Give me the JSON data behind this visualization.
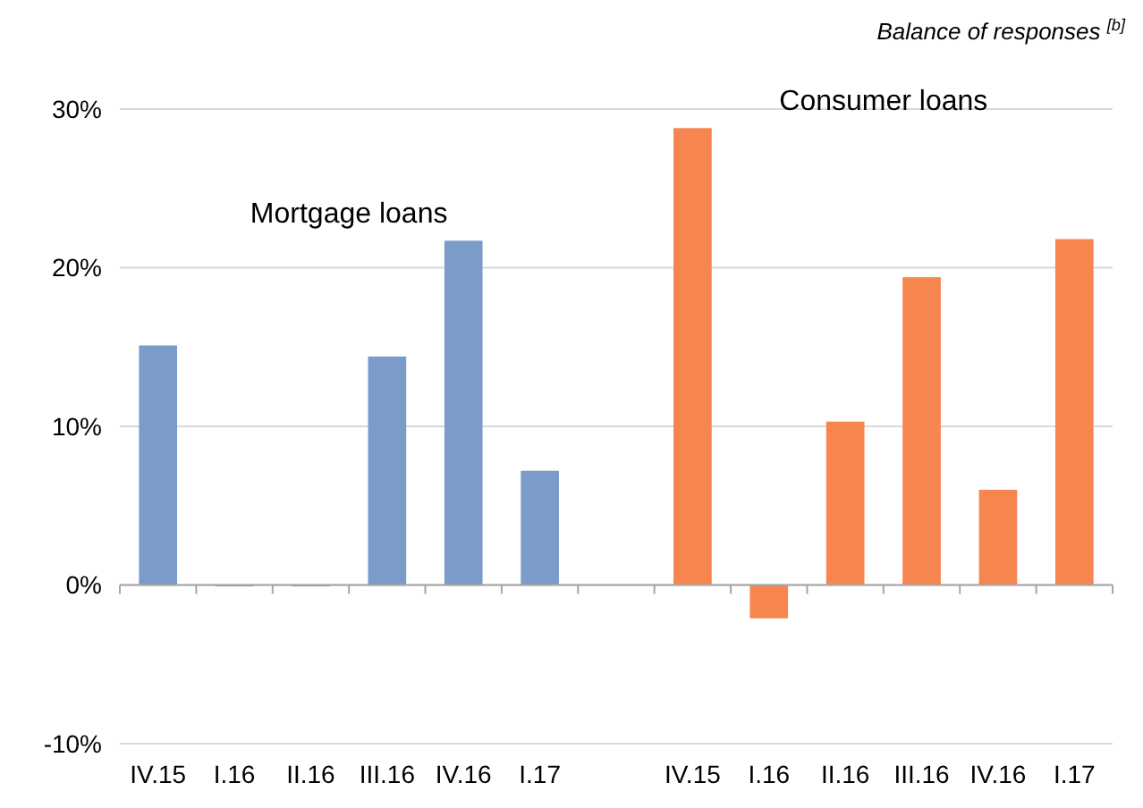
{
  "chart_data": {
    "type": "bar",
    "ylabel": "Balance of responses $^{[b]}$",
    "categories": [
      "IV.15",
      "I.16",
      "II.16",
      "III.16",
      "IV.16",
      "I.17",
      null,
      "IV.15",
      "I.16",
      "II.16",
      "III.16",
      "IV.16",
      "I.17"
    ],
    "series": [
      {
        "name": "Mortgage loans",
        "color": "#7b9cc9",
        "values": [
          15.1,
          0,
          0,
          14.4,
          21.7,
          7.2,
          null,
          null,
          null,
          null,
          null,
          null,
          null
        ]
      },
      {
        "name": "Consumer loans",
        "color": "#f7854f",
        "values": [
          null,
          null,
          null,
          null,
          null,
          null,
          null,
          28.8,
          -2.1,
          10.3,
          19.4,
          6.0,
          21.8
        ]
      }
    ],
    "ylim": [
      -10,
      30
    ],
    "yticks": [
      {
        "value": -10,
        "label": "-10%"
      },
      {
        "value": 0,
        "label": "0%"
      },
      {
        "value": 10,
        "label": "10%"
      },
      {
        "value": 20,
        "label": "20%"
      },
      {
        "value": 30,
        "label": "30%"
      }
    ],
    "grid": "y"
  }
}
